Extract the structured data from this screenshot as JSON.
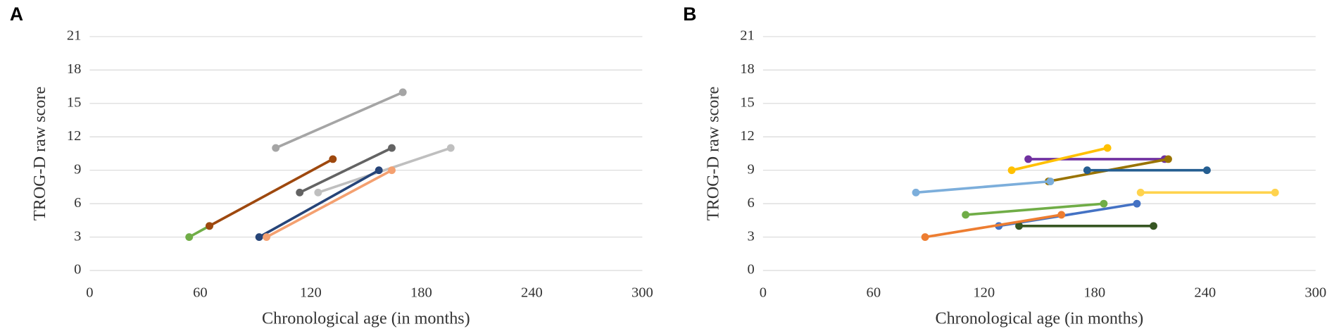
{
  "chart_data": [
    {
      "type": "line",
      "panel_label": "A",
      "x_label": "Chronological age (in months)",
      "y_label": "TROG-D raw score",
      "xlim": [
        0,
        300
      ],
      "xticks": [
        0,
        60,
        120,
        180,
        240,
        300
      ],
      "ylim": [
        0,
        21
      ],
      "yticks": [
        0,
        3,
        6,
        9,
        12,
        15,
        18,
        21
      ],
      "grid": true,
      "series": [
        {
          "color": "#70ad47",
          "x": [
            54,
            65
          ],
          "values": [
            3,
            4
          ]
        },
        {
          "color": "#9e480e",
          "x": [
            65,
            132
          ],
          "values": [
            4,
            10
          ]
        },
        {
          "color": "#a5a5a5",
          "x": [
            101,
            170
          ],
          "values": [
            11,
            16
          ]
        },
        {
          "color": "#636363",
          "x": [
            114,
            164
          ],
          "values": [
            7,
            11
          ]
        },
        {
          "color": "#bfbfbf",
          "x": [
            124,
            196
          ],
          "values": [
            7,
            11
          ]
        },
        {
          "color": "#264478",
          "x": [
            92,
            157
          ],
          "values": [
            3,
            9
          ]
        },
        {
          "color": "#f4a070",
          "x": [
            96,
            164
          ],
          "values": [
            3,
            9
          ]
        }
      ]
    },
    {
      "type": "line",
      "panel_label": "B",
      "x_label": "Chronological age (in months)",
      "y_label": "TROG-D raw score",
      "xlim": [
        0,
        300
      ],
      "xticks": [
        0,
        60,
        120,
        180,
        240,
        300
      ],
      "ylim": [
        0,
        21
      ],
      "yticks": [
        0,
        3,
        6,
        9,
        12,
        15,
        18,
        21
      ],
      "grid": true,
      "series": [
        {
          "color": "#7030a0",
          "x": [
            144,
            218
          ],
          "values": [
            10,
            10
          ]
        },
        {
          "color": "#ffc000",
          "x": [
            135,
            187
          ],
          "values": [
            9,
            11
          ]
        },
        {
          "color": "#997300",
          "x": [
            155,
            220
          ],
          "values": [
            8,
            10
          ]
        },
        {
          "color": "#7caedb",
          "x": [
            83,
            156
          ],
          "values": [
            7,
            8
          ]
        },
        {
          "color": "#255e91",
          "x": [
            176,
            241
          ],
          "values": [
            9,
            9
          ]
        },
        {
          "color": "#ffd34d",
          "x": [
            205,
            278
          ],
          "values": [
            7,
            7
          ]
        },
        {
          "color": "#70ad47",
          "x": [
            110,
            185
          ],
          "values": [
            5,
            6
          ]
        },
        {
          "color": "#4472c4",
          "x": [
            128,
            203
          ],
          "values": [
            4,
            6
          ]
        },
        {
          "color": "#375623",
          "x": [
            139,
            212
          ],
          "values": [
            4,
            4
          ]
        },
        {
          "color": "#ed7d31",
          "x": [
            88,
            162
          ],
          "values": [
            3,
            5
          ]
        }
      ]
    }
  ]
}
